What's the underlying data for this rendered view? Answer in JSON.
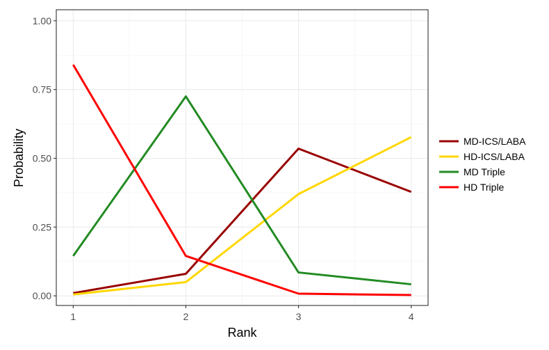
{
  "chart_data": {
    "type": "line",
    "title": "",
    "xlabel": "Rank",
    "ylabel": "Probability",
    "x": [
      1,
      2,
      3,
      4
    ],
    "xlim": [
      0.85,
      4.15
    ],
    "ylim": [
      -0.035,
      1.04
    ],
    "x_ticks": [
      "1",
      "2",
      "3",
      "4"
    ],
    "y_ticks": [
      "0.00",
      "0.25",
      "0.50",
      "0.75",
      "1.00"
    ],
    "y_tick_values": [
      0,
      0.25,
      0.5,
      0.75,
      1.0
    ],
    "grid": true,
    "legend_position": "right",
    "series": [
      {
        "name": "MD-ICS/LABA",
        "color": "#990000",
        "values": [
          0.01,
          0.08,
          0.535,
          0.378
        ]
      },
      {
        "name": "HD-ICS/LABA",
        "color": "#FFD700",
        "values": [
          0.005,
          0.05,
          0.37,
          0.577
        ]
      },
      {
        "name": "MD Triple",
        "color": "#228B22",
        "values": [
          0.145,
          0.725,
          0.085,
          0.042
        ]
      },
      {
        "name": "HD Triple",
        "color": "#FF0000",
        "values": [
          0.84,
          0.145,
          0.008,
          0.003
        ]
      }
    ]
  }
}
